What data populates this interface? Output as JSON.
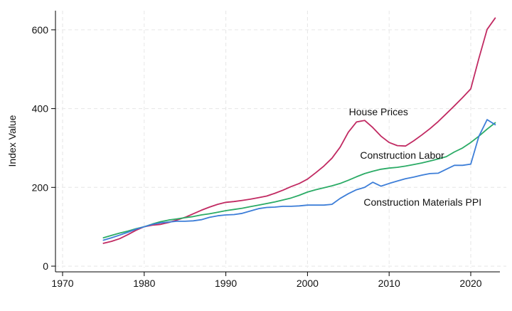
{
  "chart_data": {
    "type": "line",
    "title": "",
    "xlabel": "",
    "ylabel": "Index Value",
    "xlim": [
      1969,
      2024
    ],
    "ylim": [
      0,
      650
    ],
    "x_ticks": [
      1970,
      1980,
      1990,
      2000,
      2010,
      2020
    ],
    "y_ticks": [
      0,
      200,
      400,
      600
    ],
    "grid": {
      "show": true,
      "style": "dashed",
      "color": "#e6e6e6",
      "which": "both"
    },
    "legend_position": "direct-labels-on-chart",
    "axis_color": "#000000",
    "text_color": "#111111",
    "x": [
      1975,
      1976,
      1977,
      1978,
      1979,
      1980,
      1981,
      1982,
      1983,
      1984,
      1985,
      1986,
      1987,
      1988,
      1989,
      1990,
      1991,
      1992,
      1993,
      1994,
      1995,
      1996,
      1997,
      1998,
      1999,
      2000,
      2001,
      2002,
      2003,
      2004,
      2005,
      2006,
      2007,
      2008,
      2009,
      2010,
      2011,
      2012,
      2013,
      2014,
      2015,
      2016,
      2017,
      2018,
      2019,
      2020,
      2021,
      2022,
      2023
    ],
    "series": [
      {
        "name": "House Prices",
        "color": "#c12a62",
        "values": [
          58,
          63,
          70,
          80,
          91,
          100,
          104,
          106,
          111,
          117,
          124,
          133,
          142,
          150,
          157,
          162,
          164,
          167,
          170,
          174,
          178,
          185,
          193,
          202,
          210,
          221,
          237,
          254,
          274,
          302,
          340,
          366,
          370,
          352,
          330,
          314,
          306,
          305,
          318,
          333,
          349,
          367,
          387,
          407,
          428,
          450,
          528,
          601,
          630
        ]
      },
      {
        "name": "Construction Labor",
        "color": "#2bab66",
        "values": [
          72,
          78,
          84,
          89,
          95,
          100,
          107,
          113,
          117,
          120,
          123,
          126,
          130,
          133,
          137,
          141,
          144,
          147,
          151,
          155,
          159,
          163,
          168,
          173,
          180,
          188,
          194,
          199,
          204,
          210,
          218,
          227,
          235,
          241,
          246,
          249,
          251,
          254,
          258,
          262,
          267,
          272,
          278,
          290,
          300,
          314,
          330,
          348,
          364
        ]
      },
      {
        "name": "Construction Materials PPI",
        "color": "#3d7ed8",
        "values": [
          66,
          72,
          79,
          86,
          94,
          100,
          106,
          110,
          112,
          114,
          114,
          115,
          118,
          124,
          128,
          130,
          131,
          134,
          140,
          146,
          149,
          150,
          152,
          152,
          153,
          155,
          155,
          155,
          157,
          172,
          184,
          194,
          200,
          213,
          203,
          210,
          216,
          222,
          226,
          231,
          235,
          236,
          246,
          256,
          256,
          259,
          330,
          372,
          359
        ]
      }
    ],
    "annotations": [
      {
        "label": "House Prices",
        "x": 2008.7,
        "y": 392
      },
      {
        "label": "Construction Labor",
        "x": 2011.6,
        "y": 282
      },
      {
        "label": "Construction Materials PPI",
        "x": 2014.1,
        "y": 163
      }
    ]
  }
}
